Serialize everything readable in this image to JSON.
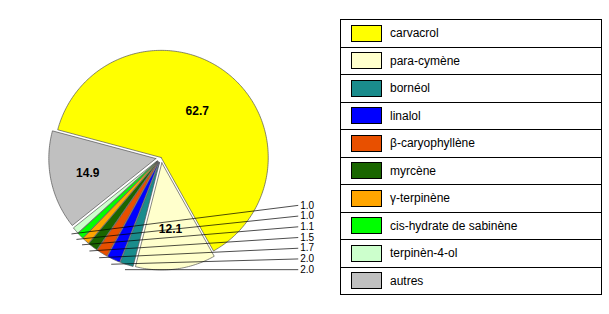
{
  "chart_data": {
    "type": "pie",
    "categories": [
      "carvacrol",
      "para-cymène",
      "bornéol",
      "linalol",
      "β-caryophyllène",
      "myrcène",
      "γ-terpinène",
      "cis-hydrate de sabinène",
      "terpinèn-4-ol",
      "autres"
    ],
    "values": [
      62.7,
      12.1,
      2.0,
      2.0,
      1.7,
      1.5,
      1.1,
      1.0,
      1.0,
      14.9
    ],
    "value_labels": [
      "62.7",
      "12.1",
      "2.0",
      "2.0",
      "1.7",
      "1.5",
      "1.1",
      "1.0",
      "1.0",
      "14.9"
    ],
    "colors": [
      "#FFFF00",
      "#FFFFCC",
      "#1A8C8C",
      "#0000FF",
      "#E85000",
      "#1A6600",
      "#FFA500",
      "#00FF00",
      "#CCFFCC",
      "#C0C0C0"
    ],
    "data_labels": true,
    "legend": "right"
  }
}
